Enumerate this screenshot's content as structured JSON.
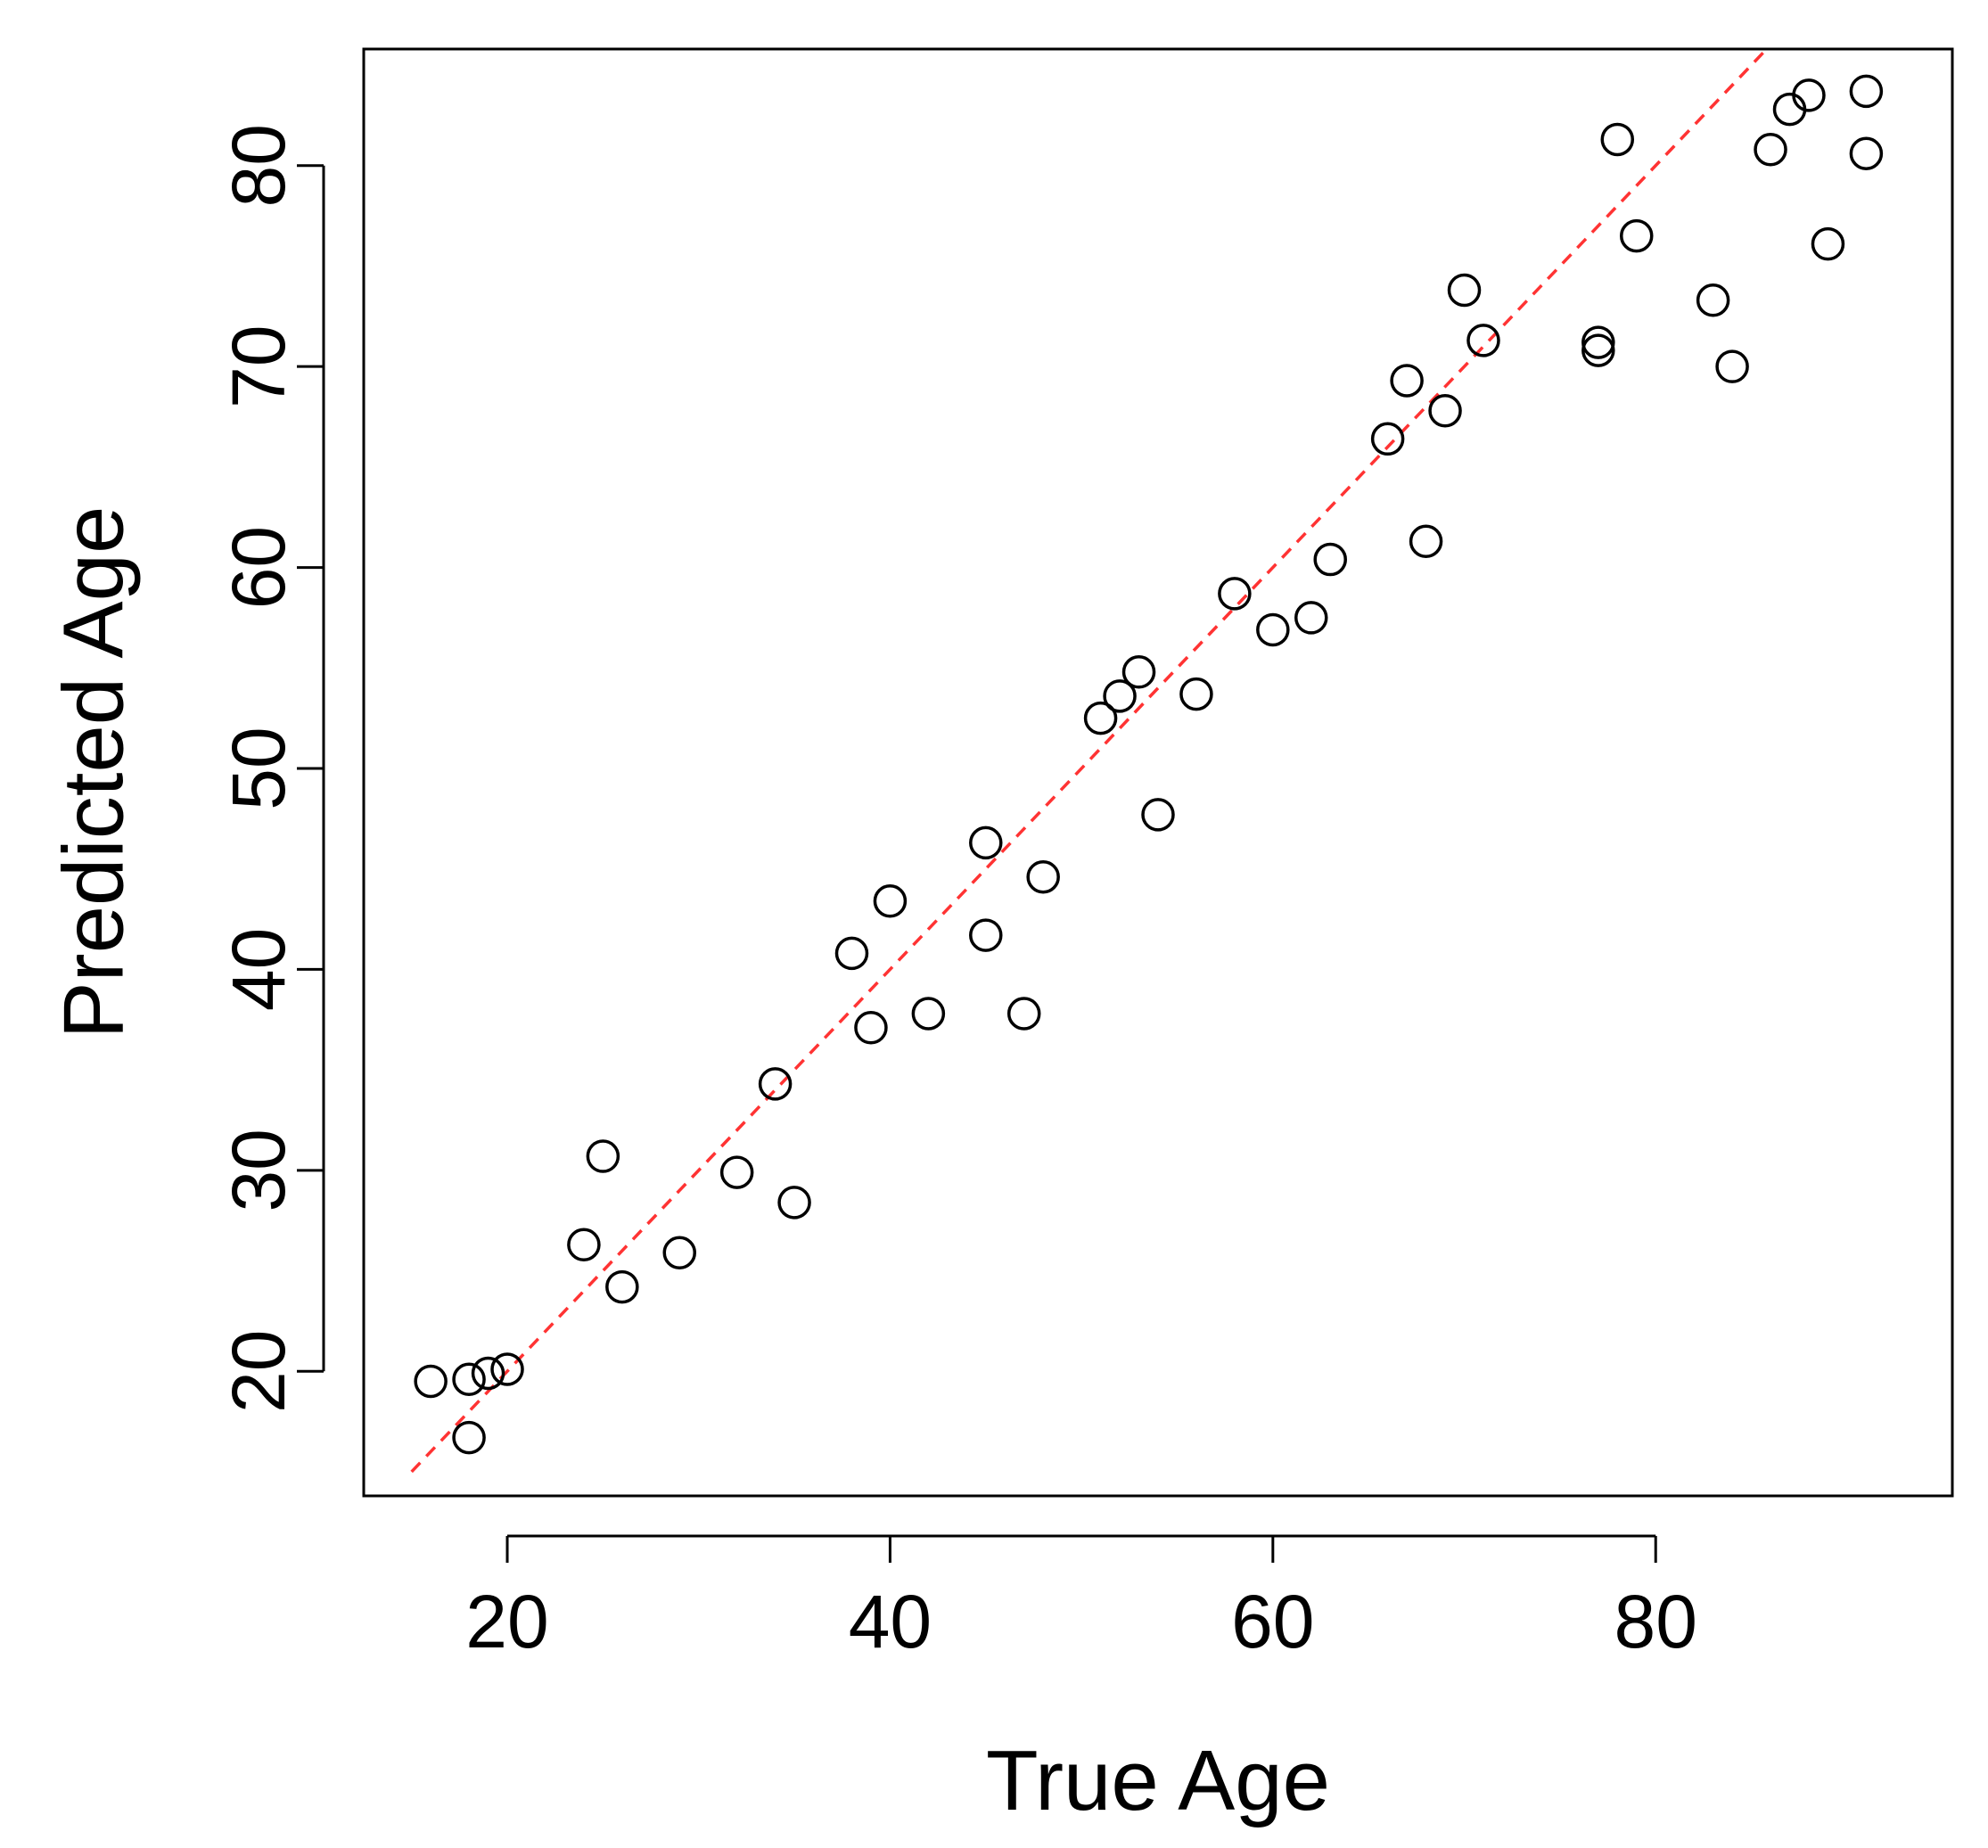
{
  "chart_data": {
    "type": "scatter",
    "title": "",
    "xlabel": "True Age",
    "ylabel": "Predicted Age",
    "xlim": [
      12.5,
      95.5
    ],
    "ylim": [
      13.8,
      85.8
    ],
    "xticks": [
      20,
      40,
      60,
      80
    ],
    "yticks": [
      20,
      30,
      40,
      50,
      60,
      70,
      80
    ],
    "grid": false,
    "marker": "open-circle",
    "point_color": "#000000",
    "reference_line": {
      "type": "identity",
      "style": "dashed",
      "color": "#ff3333"
    },
    "points": [
      {
        "x": 16,
        "y": 19.5
      },
      {
        "x": 18,
        "y": 19.6
      },
      {
        "x": 18,
        "y": 16.7
      },
      {
        "x": 19,
        "y": 19.9
      },
      {
        "x": 20,
        "y": 20.1
      },
      {
        "x": 24,
        "y": 26.3
      },
      {
        "x": 25,
        "y": 30.7
      },
      {
        "x": 26,
        "y": 24.2
      },
      {
        "x": 29,
        "y": 25.9
      },
      {
        "x": 32,
        "y": 29.9
      },
      {
        "x": 34,
        "y": 34.3
      },
      {
        "x": 35,
        "y": 28.4
      },
      {
        "x": 38,
        "y": 40.8
      },
      {
        "x": 39,
        "y": 37.1
      },
      {
        "x": 40,
        "y": 43.4
      },
      {
        "x": 42,
        "y": 37.8
      },
      {
        "x": 45,
        "y": 46.3
      },
      {
        "x": 45,
        "y": 41.7
      },
      {
        "x": 47,
        "y": 37.8
      },
      {
        "x": 48,
        "y": 44.6
      },
      {
        "x": 51,
        "y": 52.5
      },
      {
        "x": 52,
        "y": 53.6
      },
      {
        "x": 53,
        "y": 54.8
      },
      {
        "x": 54,
        "y": 47.7
      },
      {
        "x": 56,
        "y": 53.7
      },
      {
        "x": 58,
        "y": 58.7
      },
      {
        "x": 60,
        "y": 56.9
      },
      {
        "x": 62,
        "y": 57.5
      },
      {
        "x": 63,
        "y": 60.4
      },
      {
        "x": 66,
        "y": 66.4
      },
      {
        "x": 67,
        "y": 69.3
      },
      {
        "x": 68,
        "y": 61.3
      },
      {
        "x": 69,
        "y": 67.8
      },
      {
        "x": 70,
        "y": 73.8
      },
      {
        "x": 71,
        "y": 71.3
      },
      {
        "x": 77,
        "y": 71.2
      },
      {
        "x": 77,
        "y": 70.8
      },
      {
        "x": 78,
        "y": 81.3
      },
      {
        "x": 79,
        "y": 76.5
      },
      {
        "x": 83,
        "y": 73.3
      },
      {
        "x": 84,
        "y": 70.0
      },
      {
        "x": 86,
        "y": 80.8
      },
      {
        "x": 87,
        "y": 82.8
      },
      {
        "x": 88,
        "y": 83.5
      },
      {
        "x": 89,
        "y": 76.1
      },
      {
        "x": 91,
        "y": 83.7
      },
      {
        "x": 91,
        "y": 80.6
      }
    ]
  }
}
